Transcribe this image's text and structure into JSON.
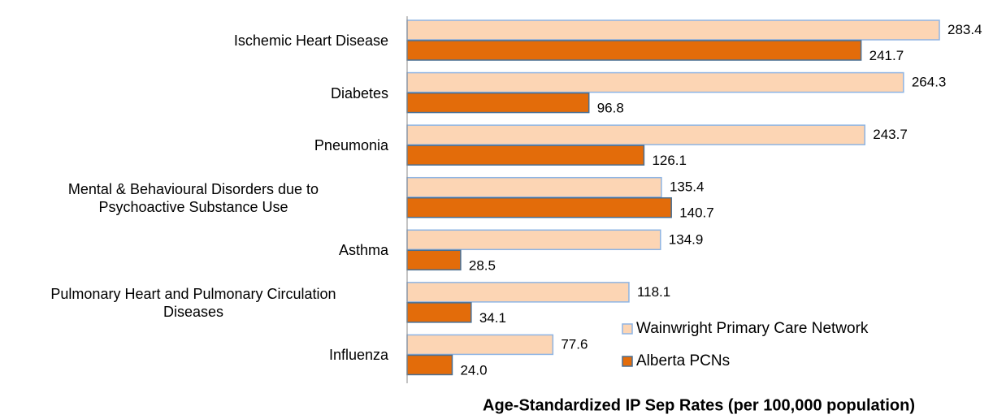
{
  "chart_data": {
    "type": "bar",
    "orientation": "horizontal",
    "x_label": "Age-Standardized IP Sep Rates (per 100,000 population)",
    "categories": [
      "Ischemic Heart Disease",
      "Diabetes",
      "Pneumonia",
      "Mental & Behavioural Disorders due to\nPsychoactive Substance Use",
      "Asthma",
      "Pulmonary Heart and Pulmonary Circulation\nDiseases",
      "Influenza"
    ],
    "series": [
      {
        "name": "Wainwright Primary Care Network",
        "color": "#fcd5b4",
        "edge_color": "#8eb4e3",
        "values": [
          283.4,
          264.3,
          243.7,
          135.4,
          134.9,
          118.1,
          77.6
        ]
      },
      {
        "name": "Alberta PCNs",
        "color": "#e36c0a",
        "edge_color": "#4a6f92",
        "values": [
          241.7,
          96.8,
          126.1,
          140.7,
          28.5,
          34.1,
          24.0
        ],
        "value_labels": [
          "241.7",
          "96.8",
          "126.1",
          "140.7",
          "28.5",
          "34.1",
          "24.0"
        ]
      }
    ],
    "xlim": [
      0,
      300
    ]
  }
}
